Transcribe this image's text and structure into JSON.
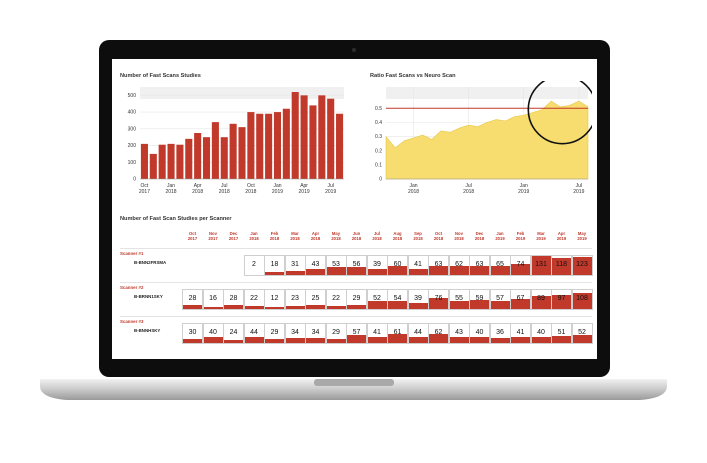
{
  "colors": {
    "bar": "#c0392b",
    "area": "#f7dc6f",
    "threshold": "#c0392b",
    "grid": "#e6e6e6"
  },
  "chart_data": [
    {
      "type": "bar",
      "title": "Number of Fast Scans Studies",
      "categories": [
        "Oct 2017",
        "Nov 2017",
        "Dec 2017",
        "Jan 2018",
        "Feb 2018",
        "Mar 2018",
        "Apr 2018",
        "May 2018",
        "Jun 2018",
        "Jul 2018",
        "Aug 2018",
        "Sep 2018",
        "Oct 2018",
        "Nov 2018",
        "Dec 2018",
        "Jan 2019",
        "Feb 2019",
        "Mar 2019",
        "Apr 2019",
        "May 2019",
        "Jun 2019",
        "Jul 2019",
        "Aug 2019"
      ],
      "values": [
        210,
        150,
        205,
        210,
        205,
        240,
        275,
        250,
        340,
        250,
        330,
        310,
        400,
        390,
        390,
        400,
        420,
        520,
        500,
        440,
        500,
        480,
        390
      ],
      "ylim": [
        0,
        550
      ],
      "yticks": [
        "0",
        "100",
        "200",
        "300",
        "400",
        "500"
      ],
      "xticks": [
        {
          "index": 0,
          "month": "Oct",
          "year": "2017"
        },
        {
          "index": 3,
          "month": "Jan",
          "year": "2018"
        },
        {
          "index": 6,
          "month": "Apr",
          "year": "2018"
        },
        {
          "index": 9,
          "month": "Jul",
          "year": "2018"
        },
        {
          "index": 12,
          "month": "Oct",
          "year": "2018"
        },
        {
          "index": 15,
          "month": "Jan",
          "year": "2019"
        },
        {
          "index": 18,
          "month": "Apr",
          "year": "2019"
        },
        {
          "index": 21,
          "month": "Jul",
          "year": "2019"
        }
      ]
    },
    {
      "type": "area",
      "title": "Ratio Fast Scans vs Neuro Scan",
      "x": [
        "2017-10",
        "2017-11",
        "2017-12",
        "2018-01",
        "2018-02",
        "2018-03",
        "2018-04",
        "2018-05",
        "2018-06",
        "2018-07",
        "2018-08",
        "2018-09",
        "2018-10",
        "2018-11",
        "2018-12",
        "2019-01",
        "2019-02",
        "2019-03",
        "2019-04",
        "2019-05",
        "2019-06",
        "2019-07",
        "2019-08"
      ],
      "values": [
        0.3,
        0.22,
        0.27,
        0.29,
        0.31,
        0.28,
        0.34,
        0.33,
        0.36,
        0.38,
        0.37,
        0.4,
        0.42,
        0.41,
        0.44,
        0.45,
        0.47,
        0.49,
        0.55,
        0.51,
        0.52,
        0.55,
        0.51
      ],
      "threshold": 0.5,
      "ylim": [
        0,
        0.65
      ],
      "yticks": [
        "0",
        "0.1",
        "0.2",
        "0.3",
        "0.4",
        "0.5"
      ],
      "xticks": [
        {
          "index": 3,
          "month": "Jan",
          "year": "2018"
        },
        {
          "index": 9,
          "month": "Jul",
          "year": "2018"
        },
        {
          "index": 15,
          "month": "Jan",
          "year": "2019"
        },
        {
          "index": 21,
          "month": "Jul",
          "year": "2019"
        }
      ]
    },
    {
      "type": "table",
      "title": "Number of Fast Scan Studies per Scanner",
      "months": [
        {
          "month": "Oct",
          "year": "2017"
        },
        {
          "month": "Nov",
          "year": "2017"
        },
        {
          "month": "Dec",
          "year": "2017"
        },
        {
          "month": "Jan",
          "year": "2018"
        },
        {
          "month": "Feb",
          "year": "2018"
        },
        {
          "month": "Mar",
          "year": "2018"
        },
        {
          "month": "Apr",
          "year": "2018"
        },
        {
          "month": "May",
          "year": "2018"
        },
        {
          "month": "Jun",
          "year": "2018"
        },
        {
          "month": "Jul",
          "year": "2018"
        },
        {
          "month": "Aug",
          "year": "2018"
        },
        {
          "month": "Sep",
          "year": "2018"
        },
        {
          "month": "Oct",
          "year": "2018"
        },
        {
          "month": "Nov",
          "year": "2018"
        },
        {
          "month": "Dec",
          "year": "2018"
        },
        {
          "month": "Jan",
          "year": "2019"
        },
        {
          "month": "Feb",
          "year": "2019"
        },
        {
          "month": "Mar",
          "year": "2019"
        },
        {
          "month": "Apr",
          "year": "2019"
        },
        {
          "month": "May",
          "year": "2019"
        }
      ],
      "scanners": [
        {
          "name": "Scanner #1",
          "id": "B-BNN2FRSMA",
          "values": [
            null,
            null,
            null,
            2,
            18,
            31,
            43,
            53,
            56,
            39,
            60,
            41,
            63,
            62,
            63,
            65,
            74,
            131,
            118,
            123
          ]
        },
        {
          "name": "Scanner #2",
          "id": "B-BRNN1SKY",
          "values": [
            28,
            16,
            28,
            22,
            12,
            23,
            25,
            22,
            29,
            52,
            54,
            39,
            76,
            55,
            59,
            57,
            67,
            89,
            97,
            108
          ]
        },
        {
          "name": "Scanner #3",
          "id": "B-BNNHSKY",
          "values": [
            30,
            40,
            24,
            44,
            29,
            34,
            34,
            29,
            57,
            41,
            61,
            44,
            62,
            43,
            40,
            36,
            41,
            40,
            51,
            52
          ]
        }
      ],
      "max": 131
    }
  ]
}
